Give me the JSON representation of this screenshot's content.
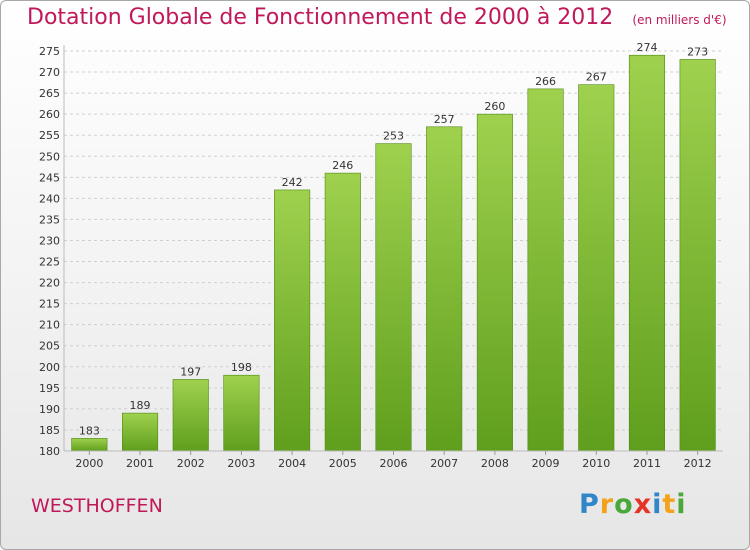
{
  "title": "Dotation Globale de Fonctionnement de 2000 à 2012",
  "unit": "(en milliers d'€)",
  "commune": "WESTHOFFEN",
  "logo": "Proxiti",
  "colors": {
    "bar": "#8cc63f",
    "bar_dark": "#5e9e1c",
    "title": "#c0185a",
    "grid": "#cfcfcf"
  },
  "chart_data": {
    "type": "bar",
    "categories": [
      "2000",
      "2001",
      "2002",
      "2003",
      "2004",
      "2005",
      "2006",
      "2007",
      "2008",
      "2009",
      "2010",
      "2011",
      "2012"
    ],
    "values": [
      183,
      189,
      197,
      198,
      242,
      246,
      253,
      257,
      260,
      266,
      267,
      274,
      273
    ],
    "ylim": [
      180,
      275
    ],
    "ytick_step": 5,
    "grid": "horizontal dashed"
  }
}
